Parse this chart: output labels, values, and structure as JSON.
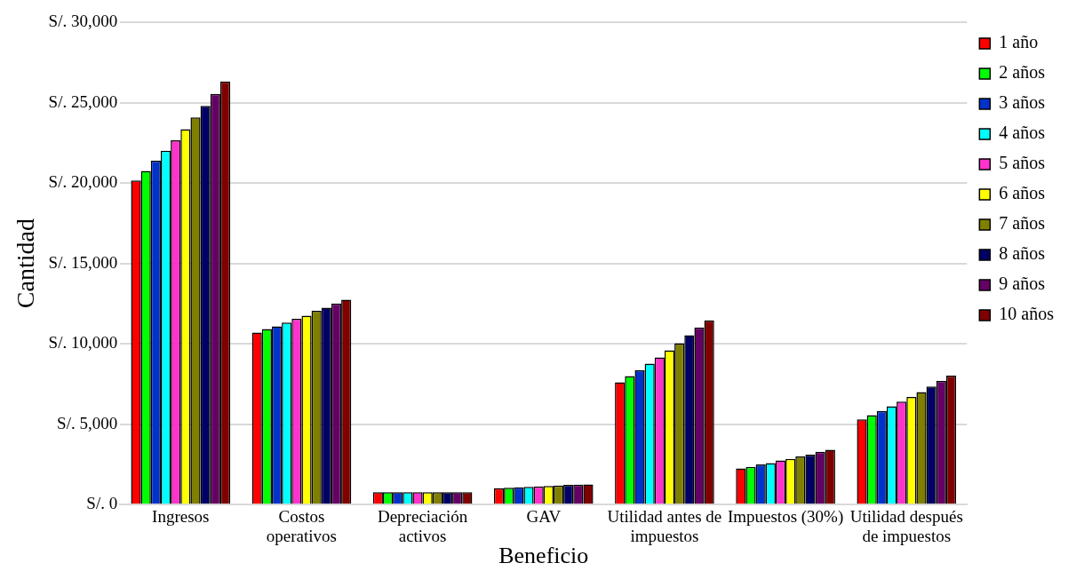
{
  "chart_data": {
    "type": "bar",
    "xlabel": "Beneficio",
    "ylabel": "Cantidad",
    "categories": [
      "Ingresos",
      "Costos operativos",
      "Depreciación activos",
      "GAV",
      "Utilidad antes de impuestos",
      "Impuestos (30%)",
      "Utilidad después de impuestos"
    ],
    "series": [
      {
        "name": "1 año",
        "color": "#ff0000",
        "values": [
          20150,
          10700,
          770,
          1020,
          7610,
          2250,
          5300
        ]
      },
      {
        "name": "2 años",
        "color": "#00ff00",
        "values": [
          20750,
          10920,
          770,
          1040,
          7990,
          2340,
          5560
        ]
      },
      {
        "name": "3 años",
        "color": "#0033cc",
        "values": [
          21380,
          11080,
          770,
          1070,
          8360,
          2500,
          5830
        ]
      },
      {
        "name": "4 años",
        "color": "#00ffff",
        "values": [
          22010,
          11320,
          770,
          1100,
          8760,
          2580,
          6110
        ]
      },
      {
        "name": "5 años",
        "color": "#ff33cc",
        "values": [
          22660,
          11560,
          770,
          1130,
          9150,
          2740,
          6410
        ]
      },
      {
        "name": "6 años",
        "color": "#ffff00",
        "values": [
          23350,
          11750,
          770,
          1160,
          9590,
          2840,
          6690
        ]
      },
      {
        "name": "7 años",
        "color": "#808000",
        "values": [
          24080,
          12050,
          770,
          1190,
          10040,
          2990,
          7000
        ]
      },
      {
        "name": "8 años",
        "color": "#000066",
        "values": [
          24790,
          12250,
          770,
          1220,
          10530,
          3110,
          7340
        ]
      },
      {
        "name": "9 años",
        "color": "#660066",
        "values": [
          25540,
          12500,
          770,
          1240,
          11010,
          3290,
          7690
        ]
      },
      {
        "name": "10 años",
        "color": "#800000",
        "values": [
          26310,
          12740,
          770,
          1260,
          11460,
          3410,
          8020
        ]
      }
    ],
    "ylim": [
      0,
      30000
    ],
    "yticks": [
      {
        "value": 0,
        "label": "S/. 0"
      },
      {
        "value": 5000,
        "label": "S/. 5,000"
      },
      {
        "value": 10000,
        "label": "S/. 10,000"
      },
      {
        "value": 15000,
        "label": "S/. 15,000"
      },
      {
        "value": 20000,
        "label": "S/. 20,000"
      },
      {
        "value": 25000,
        "label": "S/. 25,000"
      },
      {
        "value": 30000,
        "label": "S/. 30,000"
      }
    ],
    "grid": "y",
    "legend": "top right"
  }
}
